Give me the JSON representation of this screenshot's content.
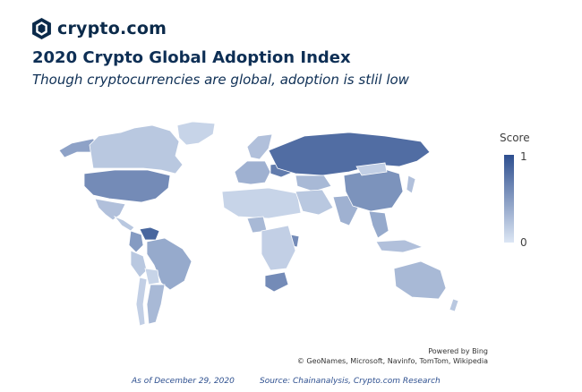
{
  "header": {
    "logo_text": "crypto.com",
    "logo_icon": "crypto-com-lion-shield-icon",
    "title": "2020 Crypto Global Adoption Index",
    "subtitle": "Though cryptocurrencies are global, adoption is stlil low"
  },
  "legend": {
    "title": "Score",
    "max_label": "1",
    "min_label": "0",
    "color_high": "#2e4f8f",
    "color_low": "#dce6f4"
  },
  "map": {
    "attribution_line1": "Powered by Bing",
    "attribution_line2": "© GeoNames, Microsoft, Navinfo, TomTom, Wikipedia",
    "regions": [
      {
        "name": "Alaska",
        "score": 0.45
      },
      {
        "name": "Canada",
        "score": 0.2
      },
      {
        "name": "Greenland",
        "score": 0.12
      },
      {
        "name": "United States",
        "score": 0.6
      },
      {
        "name": "Mexico",
        "score": 0.25
      },
      {
        "name": "Central America",
        "score": 0.2
      },
      {
        "name": "Venezuela",
        "score": 0.85
      },
      {
        "name": "Colombia",
        "score": 0.5
      },
      {
        "name": "Brazil",
        "score": 0.4
      },
      {
        "name": "Peru",
        "score": 0.2
      },
      {
        "name": "Bolivia",
        "score": 0.12
      },
      {
        "name": "Argentina",
        "score": 0.3
      },
      {
        "name": "Chile",
        "score": 0.15
      },
      {
        "name": "Scandinavia",
        "score": 0.25
      },
      {
        "name": "Western Europe",
        "score": 0.35
      },
      {
        "name": "Ukraine",
        "score": 0.7
      },
      {
        "name": "Russia",
        "score": 0.8
      },
      {
        "name": "Kazakhstan",
        "score": 0.3
      },
      {
        "name": "North Africa",
        "score": 0.12
      },
      {
        "name": "Nigeria",
        "score": 0.3
      },
      {
        "name": "Kenya",
        "score": 0.6
      },
      {
        "name": "Central Africa",
        "score": 0.15
      },
      {
        "name": "South Africa",
        "score": 0.6
      },
      {
        "name": "Middle East",
        "score": 0.2
      },
      {
        "name": "India",
        "score": 0.35
      },
      {
        "name": "China",
        "score": 0.55
      },
      {
        "name": "Mongolia",
        "score": 0.15
      },
      {
        "name": "Japan",
        "score": 0.25
      },
      {
        "name": "Southeast Asia",
        "score": 0.4
      },
      {
        "name": "Indonesia",
        "score": 0.25
      },
      {
        "name": "Australia",
        "score": 0.3
      },
      {
        "name": "New Zealand",
        "score": 0.2
      }
    ]
  },
  "footer": {
    "as_of": "As of December 29, 2020",
    "source": "Source: Chainanalysis, Crypto.com Research"
  }
}
